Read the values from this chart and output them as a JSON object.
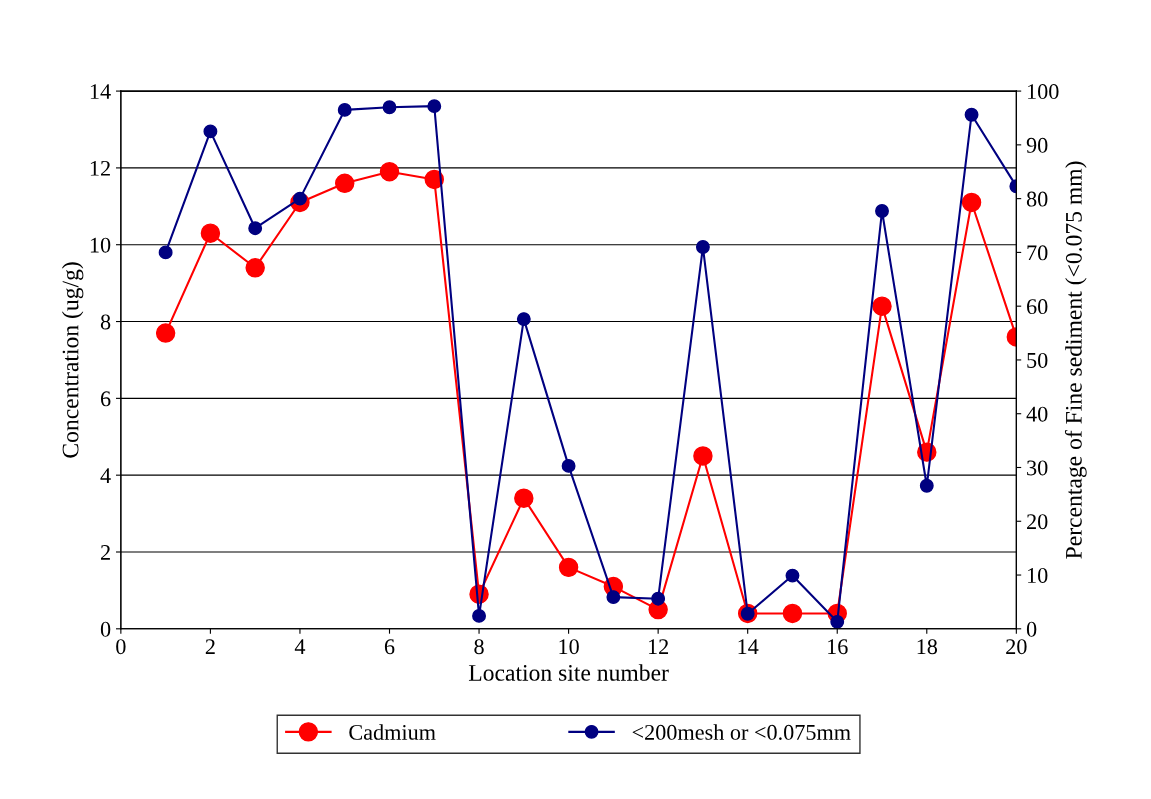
{
  "chart_data": {
    "type": "line",
    "xlabel": "Location site number",
    "ylabel": "Concentration (ug/g)",
    "y2label": "Percentage of Fine sediment (<0.075 mm)",
    "x": [
      1,
      2,
      3,
      4,
      5,
      6,
      7,
      8,
      9,
      10,
      11,
      12,
      13,
      14,
      15,
      16,
      17,
      18,
      19,
      20
    ],
    "series": [
      {
        "name": "Cadmium",
        "color": "#ff0000",
        "values": [
          7.7,
          10.3,
          9.4,
          11.1,
          11.6,
          11.9,
          11.7,
          0.9,
          3.4,
          1.6,
          1.1,
          0.5,
          4.5,
          0.4,
          0.4,
          0.4,
          8.4,
          4.6,
          11.1,
          7.6
        ]
      },
      {
        "name": "<200mesh or <0.075mm",
        "color": "#000080",
        "axis": "y2",
        "values": [
          70,
          92.5,
          74.5,
          80,
          96.5,
          97,
          97.2,
          2.4,
          57.6,
          30.3,
          5.9,
          5.6,
          71,
          2.8,
          9.9,
          1.3,
          77.7,
          26.6,
          95.6,
          82.3
        ]
      }
    ],
    "xlim": [
      0,
      20
    ],
    "xticks": [
      0,
      2,
      4,
      6,
      8,
      10,
      12,
      14,
      16,
      18,
      20
    ],
    "ylim": [
      0,
      14
    ],
    "yticks": [
      0,
      2,
      4,
      6,
      8,
      10,
      12,
      14
    ],
    "y2lim": [
      0,
      100
    ],
    "y2ticks": [
      0,
      10,
      20,
      30,
      40,
      50,
      60,
      70,
      80,
      90,
      100
    ],
    "grid": "y",
    "legend": "bottom",
    "marker": "circle",
    "line_style": "solid"
  }
}
